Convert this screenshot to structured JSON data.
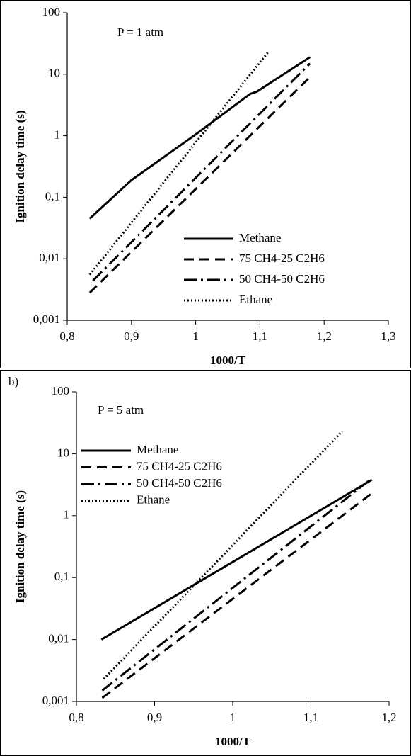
{
  "chart_data": [
    {
      "type": "line",
      "annotation": "P = 1 atm",
      "x_label": "1000/T",
      "y_label": "Ignition delay time (s)",
      "log_y": true,
      "legend": "lower-right",
      "xlim": [
        0.8,
        1.3
      ],
      "xticks": [
        {
          "value": 0.8,
          "label": "0,8"
        },
        {
          "value": 0.9,
          "label": "0,9"
        },
        1,
        {
          "value": 1.1,
          "label": "1,1"
        },
        {
          "value": 1.2,
          "label": "1,2"
        },
        {
          "value": 1.3,
          "label": "1,3"
        }
      ],
      "ylim": [
        0.001,
        100
      ],
      "yticks": [
        {
          "value": 0.001,
          "label": "0,001"
        },
        {
          "value": 0.01,
          "label": "0,01"
        },
        {
          "value": 0.1,
          "label": "0,1"
        },
        1,
        10,
        100
      ],
      "series": [
        {
          "name": "Methane",
          "color": "#000000",
          "dash": "solid",
          "x": [
            0.835,
            0.9,
            1.0,
            1.085,
            1.095,
            1.178
          ],
          "values": [
            0.045,
            0.19,
            1.05,
            4.8,
            5.2,
            19
          ]
        },
        {
          "name": "75 CH4-25 C2H6",
          "color": "#000000",
          "dash": "dashed",
          "x": [
            0.835,
            1.178
          ],
          "values": [
            0.0028,
            9
          ]
        },
        {
          "name": "50 CH4-50 C2H6",
          "color": "#000000",
          "dash": "dashdot",
          "x": [
            0.84,
            1.178
          ],
          "values": [
            0.0044,
            15
          ]
        },
        {
          "name": "Ethane",
          "color": "#000000",
          "dash": "dotted",
          "x": [
            0.835,
            1.113
          ],
          "values": [
            0.0055,
            23
          ]
        }
      ]
    },
    {
      "type": "line",
      "panel_label": "b)",
      "annotation": "P = 5 atm",
      "x_label": "1000/T",
      "y_label": "Ignition delay time (s)",
      "log_y": true,
      "legend": "upper-left",
      "xlim": [
        0.8,
        1.2
      ],
      "xticks": [
        {
          "value": 0.8,
          "label": "0,8"
        },
        {
          "value": 0.9,
          "label": "0,9"
        },
        1,
        {
          "value": 1.1,
          "label": "1,1"
        },
        {
          "value": 1.2,
          "label": "1,2"
        }
      ],
      "ylim": [
        0.001,
        100
      ],
      "yticks": [
        {
          "value": 0.001,
          "label": "0,001"
        },
        {
          "value": 0.01,
          "label": "0,01"
        },
        {
          "value": 0.1,
          "label": "0,1"
        },
        1,
        10,
        100
      ],
      "series": [
        {
          "name": "Methane",
          "color": "#000000",
          "dash": "solid",
          "x": [
            0.832,
            1.178
          ],
          "values": [
            0.01,
            3.8
          ]
        },
        {
          "name": "75 CH4-25 C2H6",
          "color": "#000000",
          "dash": "dashed",
          "x": [
            0.833,
            1.178
          ],
          "values": [
            0.00114,
            2.3
          ]
        },
        {
          "name": "50 CH4-50 C2H6",
          "color": "#000000",
          "dash": "dashdot",
          "x": [
            0.833,
            1.178
          ],
          "values": [
            0.0015,
            4
          ]
        },
        {
          "name": "Ethane",
          "color": "#000000",
          "dash": "dotted",
          "x": [
            0.835,
            1.14
          ],
          "values": [
            0.0023,
            23
          ]
        }
      ]
    }
  ]
}
